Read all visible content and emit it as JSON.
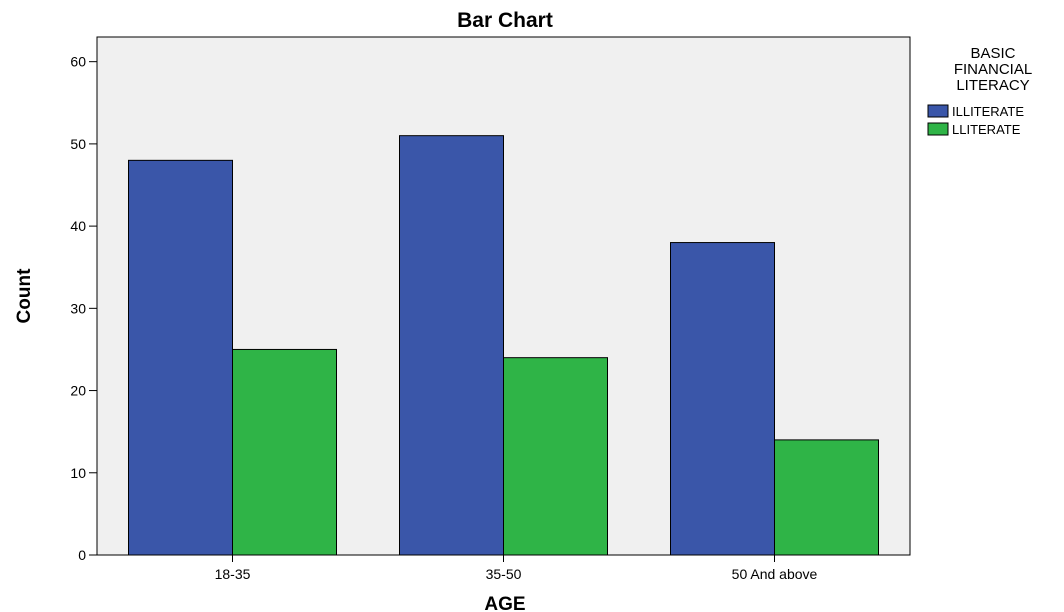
{
  "chart_data": {
    "type": "bar",
    "title": "Bar Chart",
    "xlabel": "AGE",
    "ylabel": "Count",
    "categories": [
      "18-35",
      "35-50",
      "50 And above"
    ],
    "series": [
      {
        "name": "ILLITERATE",
        "values": [
          48,
          51,
          38
        ],
        "color": "#3a56a9"
      },
      {
        "name": "LLITERATE",
        "values": [
          25,
          24,
          14
        ],
        "color": "#2fb447"
      }
    ],
    "ylim": [
      0,
      63
    ],
    "yticks": [
      0,
      10,
      20,
      30,
      40,
      50,
      60
    ],
    "grid": false,
    "legend": {
      "position": "right",
      "title_lines": [
        "BASIC",
        "FINANCIAL",
        "LITERACY"
      ]
    },
    "plot_background": "#f0f0f0",
    "bar_edge_color": "#000000"
  }
}
